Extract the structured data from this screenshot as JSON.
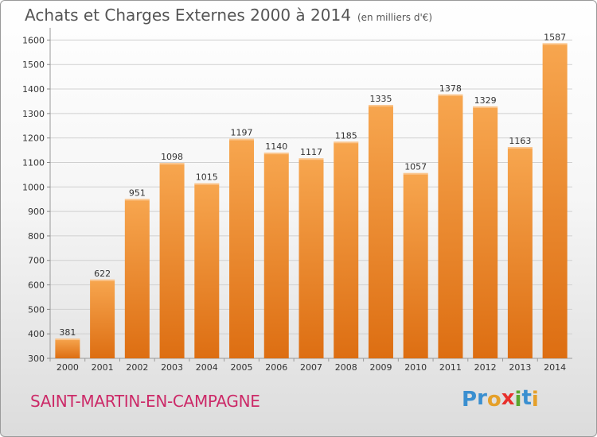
{
  "title": "Achats et Charges Externes 2000 à 2014",
  "subtitle": "(en milliers d'€)",
  "city": "SAINT-MARTIN-EN-CAMPAGNE",
  "logo": {
    "letters": [
      "P",
      "r",
      "o",
      "x",
      "i",
      "t",
      "i"
    ],
    "colors": [
      "#3a8fd0",
      "#3a8fd0",
      "#e5a02a",
      "#e8302c",
      "#5aa72e",
      "#3a8fd0",
      "#e5a02a"
    ]
  },
  "colors": {
    "bar_top": "#f7a64f",
    "bar_bottom": "#dd6e12",
    "grid": "#d0d0d0",
    "axis_text": "#333333",
    "city": "#cc2a68"
  },
  "chart_data": {
    "type": "bar",
    "categories": [
      "2000",
      "2001",
      "2002",
      "2003",
      "2004",
      "2005",
      "2006",
      "2007",
      "2008",
      "2009",
      "2010",
      "2011",
      "2012",
      "2013",
      "2014"
    ],
    "values": [
      381,
      622,
      951,
      1098,
      1015,
      1197,
      1140,
      1117,
      1185,
      1335,
      1057,
      1378,
      1329,
      1163,
      1587
    ],
    "data_labels": [
      "381",
      "622",
      "951",
      "1098",
      "1015",
      "1197",
      "1140",
      "1117",
      "1185",
      "1335",
      "1057",
      "1378",
      "1329",
      "1163",
      "1587"
    ],
    "yticks": [
      300,
      400,
      500,
      600,
      700,
      800,
      900,
      1000,
      1100,
      1200,
      1300,
      1400,
      1500,
      1600
    ],
    "ylim": [
      300,
      1650
    ],
    "grid": true,
    "legend": "none"
  }
}
